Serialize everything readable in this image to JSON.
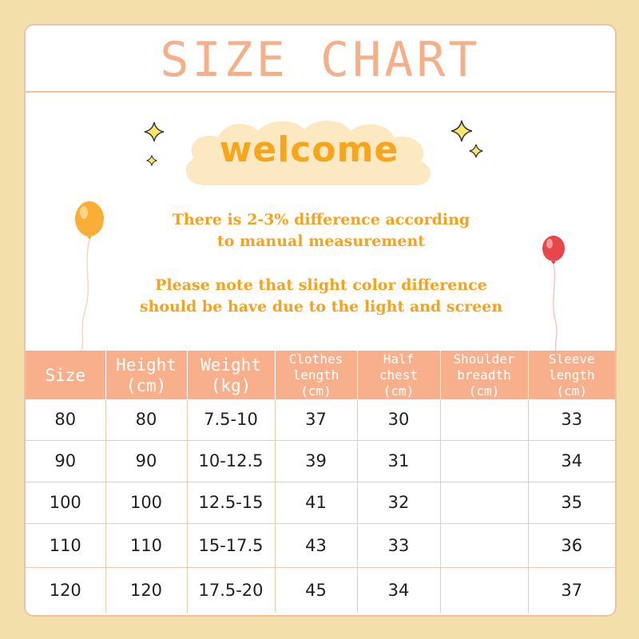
{
  "title": "SIZE CHART",
  "welcome": "welcome",
  "notes": [
    "There is 2-3% difference according",
    "to manual measurement",
    "Please note that slight color difference",
    "should be have due to the light and screen"
  ],
  "colors": {
    "background": "#f3dfaa",
    "accent": "#f7b08b",
    "title": "#f3b08b",
    "welcome_text": "#f7a51b",
    "note_text": "#f7a21c",
    "cloud": "#fde9c1",
    "border": "#efc2a6"
  },
  "icons": [
    "sparkle-icon",
    "cloud-icon",
    "orange-balloon-icon",
    "red-balloon-icon"
  ],
  "table": {
    "headers": [
      {
        "line1": "Size",
        "line2": ""
      },
      {
        "line1": "Height",
        "line2": "(cm)"
      },
      {
        "line1": "Weight",
        "line2": "(kg)"
      },
      {
        "line1": "Clothes",
        "line2": "length",
        "line3": "(cm)"
      },
      {
        "line1": "Half",
        "line2": "chest",
        "line3": "(cm)"
      },
      {
        "line1": "Shoulder",
        "line2": "breadth",
        "line3": "(cm)"
      },
      {
        "line1": "Sleeve",
        "line2": "length",
        "line3": "(cm)"
      }
    ],
    "rows": [
      [
        "80",
        "80",
        "7.5-10",
        "37",
        "30",
        "",
        "33"
      ],
      [
        "90",
        "90",
        "10-12.5",
        "39",
        "31",
        "",
        "34"
      ],
      [
        "100",
        "100",
        "12.5-15",
        "41",
        "32",
        "",
        "35"
      ],
      [
        "110",
        "110",
        "15-17.5",
        "43",
        "33",
        "",
        "36"
      ],
      [
        "120",
        "120",
        "17.5-20",
        "45",
        "34",
        "",
        "37"
      ]
    ]
  }
}
